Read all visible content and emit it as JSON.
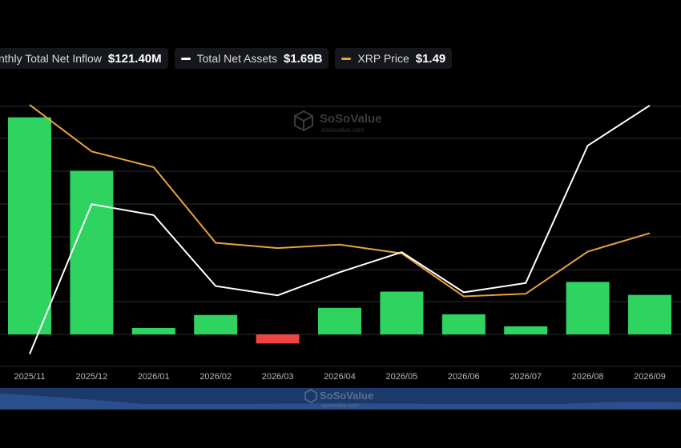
{
  "legend": {
    "inflow_label": "nthly Total Net Inflow",
    "inflow_value": "$121.40M",
    "assets_label": "Total Net Assets",
    "assets_value": "$1.69B",
    "price_label": "XRP Price",
    "price_value": "$1.49"
  },
  "watermark": {
    "brand": "SoSoValue",
    "url": "sosovalue.com"
  },
  "colors": {
    "positive_bar": "#2fd360",
    "negative_bar": "#ef4444",
    "assets_line": "#ffffff",
    "price_line": "#e8a33d",
    "gridline": "#2e2e2e",
    "navigator": "#1b3a6b"
  },
  "chart_data": {
    "type": "bar",
    "categories": [
      "2025/11",
      "2025/12",
      "2026/01",
      "2026/02",
      "2026/03",
      "2026/04",
      "2026/05",
      "2026/06",
      "2026/07",
      "2026/08",
      "2026/09"
    ],
    "series": [
      {
        "name": "Monthly Total Net Inflow",
        "kind": "bar",
        "values": [
          670,
          505,
          20,
          60,
          -28,
          82,
          132,
          62,
          25,
          162,
          122
        ]
      },
      {
        "name": "Total Net Assets",
        "kind": "line",
        "values": [
          0.08,
          1.05,
          0.98,
          0.52,
          0.46,
          0.61,
          0.74,
          0.48,
          0.54,
          1.43,
          1.69
        ]
      },
      {
        "name": "XRP Price",
        "kind": "line",
        "values": [
          2.95,
          2.42,
          2.24,
          1.38,
          1.32,
          1.36,
          1.26,
          0.77,
          0.8,
          1.28,
          1.49
        ]
      }
    ],
    "grid": true,
    "legend_position": "top-left"
  }
}
